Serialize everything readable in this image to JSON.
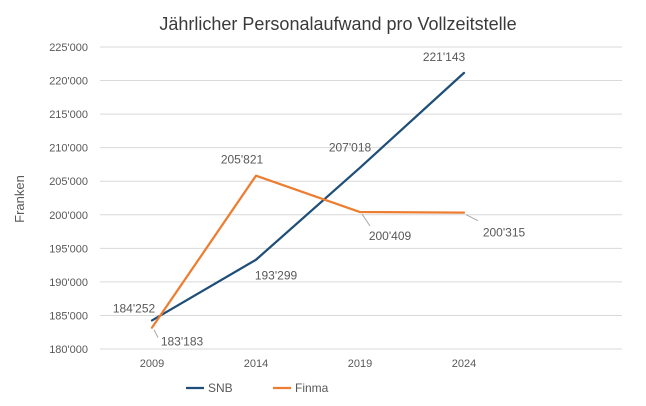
{
  "chart_data": {
    "type": "line",
    "title": "Jährlicher Personalaufwand pro Vollzeitstelle",
    "xlabel": "",
    "ylabel": "Franken",
    "x": [
      "2009",
      "2014",
      "2019",
      "2024"
    ],
    "ylim": [
      180000,
      225000
    ],
    "yticks": [
      180000,
      185000,
      190000,
      195000,
      200000,
      205000,
      210000,
      215000,
      220000,
      225000
    ],
    "ytick_labels": [
      "180'000",
      "185'000",
      "190'000",
      "195'000",
      "200'000",
      "205'000",
      "210'000",
      "215'000",
      "220'000",
      "225'000"
    ],
    "grid": "horizontal",
    "legend_position": "bottom",
    "series": [
      {
        "name": "SNB",
        "color": "#1f4e79",
        "values": [
          184252,
          193299,
          207018,
          221143
        ],
        "labels": [
          "184'252",
          "193'299",
          "207'018",
          "221'143"
        ]
      },
      {
        "name": "Finma",
        "color": "#ed7d31",
        "values": [
          183183,
          205821,
          200409,
          200315
        ],
        "labels": [
          "183'183",
          "205'821",
          "200'409",
          "200'315"
        ]
      }
    ]
  }
}
